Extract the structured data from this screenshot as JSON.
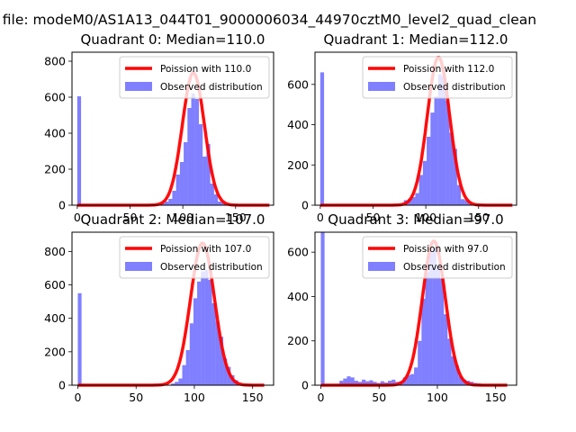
{
  "suptitle": "n file: modeM0/AS1A13_044T01_9000006034_44970cztM0_level2_quad_clean",
  "chart_data": [
    {
      "type": "bar+line",
      "title": "Quadrant 0: Median=110.0",
      "xlim": [
        -5,
        186
      ],
      "ylim": [
        0,
        850
      ],
      "xticks": [
        0,
        50,
        100,
        150
      ],
      "yticks": [
        0,
        200,
        400,
        600,
        800
      ],
      "bin_width": 3.6,
      "legend": {
        "position": "top-right",
        "line_label": "Poission with 110.0",
        "bar_label": "Observed distribution"
      },
      "series": [
        {
          "name": "Observed distribution",
          "kind": "histogram",
          "color": "#0000ff",
          "bins": [
            {
              "x": 0,
              "y": 605
            },
            {
              "x": 79.2,
              "y": 10
            },
            {
              "x": 82.8,
              "y": 20
            },
            {
              "x": 86.4,
              "y": 35
            },
            {
              "x": 90,
              "y": 80
            },
            {
              "x": 93.6,
              "y": 170
            },
            {
              "x": 97.2,
              "y": 240
            },
            {
              "x": 100.8,
              "y": 350
            },
            {
              "x": 104.4,
              "y": 540
            },
            {
              "x": 108,
              "y": 620
            },
            {
              "x": 111.6,
              "y": 590
            },
            {
              "x": 115.2,
              "y": 450
            },
            {
              "x": 118.8,
              "y": 270
            },
            {
              "x": 122.4,
              "y": 340
            },
            {
              "x": 126,
              "y": 120
            },
            {
              "x": 129.6,
              "y": 60
            },
            {
              "x": 133.2,
              "y": 20
            },
            {
              "x": 136.8,
              "y": 15
            },
            {
              "x": 140.4,
              "y": 8
            }
          ]
        },
        {
          "name": "Poission with 110.0",
          "kind": "poisson",
          "mu": 110,
          "peak": 735,
          "x_range": [
            0,
            182
          ],
          "color": "#ff0000"
        }
      ]
    },
    {
      "type": "bar+line",
      "title": "Quadrant 1: Median=112.0",
      "xlim": [
        -5,
        186
      ],
      "ylim": [
        0,
        760
      ],
      "xticks": [
        0,
        50,
        100,
        150
      ],
      "yticks": [
        0,
        200,
        400,
        600
      ],
      "bin_width": 3.6,
      "legend": {
        "position": "top-right",
        "line_label": "Poission with 112.0",
        "bar_label": "Observed distribution"
      },
      "series": [
        {
          "name": "Observed distribution",
          "kind": "histogram",
          "color": "#0000ff",
          "bins": [
            {
              "x": 0,
              "y": 660
            },
            {
              "x": 79.2,
              "y": 25
            },
            {
              "x": 82.8,
              "y": 30
            },
            {
              "x": 86.4,
              "y": 40
            },
            {
              "x": 90,
              "y": 60
            },
            {
              "x": 93.6,
              "y": 150
            },
            {
              "x": 97.2,
              "y": 220
            },
            {
              "x": 100.8,
              "y": 340
            },
            {
              "x": 104.4,
              "y": 460
            },
            {
              "x": 108,
              "y": 540
            },
            {
              "x": 111.6,
              "y": 650
            },
            {
              "x": 115.2,
              "y": 640
            },
            {
              "x": 118.8,
              "y": 520
            },
            {
              "x": 122.4,
              "y": 360
            },
            {
              "x": 126,
              "y": 280
            },
            {
              "x": 129.6,
              "y": 100
            },
            {
              "x": 133.2,
              "y": 30
            },
            {
              "x": 136.8,
              "y": 25
            },
            {
              "x": 140.4,
              "y": 12
            }
          ]
        },
        {
          "name": "Poission with 112.0",
          "kind": "poisson",
          "mu": 112,
          "peak": 735,
          "x_range": [
            0,
            182
          ],
          "color": "#ff0000"
        }
      ]
    },
    {
      "type": "bar+line",
      "title": "Quadrant 2: Median=107.0",
      "xlim": [
        -5,
        168
      ],
      "ylim": [
        0,
        915
      ],
      "xticks": [
        0,
        50,
        100,
        150
      ],
      "yticks": [
        0,
        200,
        400,
        600,
        800
      ],
      "bin_width": 3.2,
      "legend": {
        "position": "top-right",
        "line_label": "Poission with 107.0",
        "bar_label": "Observed distribution"
      },
      "series": [
        {
          "name": "Observed distribution",
          "kind": "histogram",
          "color": "#0000ff",
          "bins": [
            {
              "x": 0,
              "y": 550
            },
            {
              "x": 80,
              "y": 10
            },
            {
              "x": 83.2,
              "y": 20
            },
            {
              "x": 86.4,
              "y": 40
            },
            {
              "x": 89.6,
              "y": 120
            },
            {
              "x": 92.8,
              "y": 210
            },
            {
              "x": 96,
              "y": 370
            },
            {
              "x": 99.2,
              "y": 520
            },
            {
              "x": 102.4,
              "y": 620
            },
            {
              "x": 105.6,
              "y": 680
            },
            {
              "x": 108.8,
              "y": 690
            },
            {
              "x": 112,
              "y": 630
            },
            {
              "x": 115.2,
              "y": 490
            },
            {
              "x": 118.4,
              "y": 380
            },
            {
              "x": 121.6,
              "y": 290
            },
            {
              "x": 124.8,
              "y": 160
            },
            {
              "x": 128,
              "y": 110
            },
            {
              "x": 131.2,
              "y": 60
            },
            {
              "x": 134.4,
              "y": 30
            }
          ]
        },
        {
          "name": "Poission with 107.0",
          "kind": "poisson",
          "mu": 107,
          "peak": 850,
          "x_range": [
            0,
            160
          ],
          "color": "#ff0000"
        }
      ]
    },
    {
      "type": "bar+line",
      "title": "Quadrant 3: Median=97.0",
      "xlim": [
        -5,
        168
      ],
      "ylim": [
        0,
        690
      ],
      "xticks": [
        0,
        50,
        100,
        150
      ],
      "yticks": [
        0,
        200,
        400,
        600
      ],
      "bin_width": 3.2,
      "legend": {
        "position": "top-right",
        "line_label": "Poission with 97.0",
        "bar_label": "Observed distribution"
      },
      "series": [
        {
          "name": "Observed distribution",
          "kind": "histogram",
          "color": "#0000ff",
          "bins": [
            {
              "x": 0,
              "y": 690
            },
            {
              "x": 16,
              "y": 20
            },
            {
              "x": 19.2,
              "y": 30
            },
            {
              "x": 22.4,
              "y": 40
            },
            {
              "x": 25.6,
              "y": 35
            },
            {
              "x": 28.8,
              "y": 20
            },
            {
              "x": 32,
              "y": 15
            },
            {
              "x": 35.2,
              "y": 25
            },
            {
              "x": 38.4,
              "y": 18
            },
            {
              "x": 41.6,
              "y": 22
            },
            {
              "x": 44.8,
              "y": 15
            },
            {
              "x": 48,
              "y": 10
            },
            {
              "x": 51.2,
              "y": 18
            },
            {
              "x": 54.4,
              "y": 12
            },
            {
              "x": 57.6,
              "y": 20
            },
            {
              "x": 60.8,
              "y": 25
            },
            {
              "x": 64,
              "y": 15
            },
            {
              "x": 67.2,
              "y": 18
            },
            {
              "x": 70.4,
              "y": 35
            },
            {
              "x": 73.6,
              "y": 45
            },
            {
              "x": 76.8,
              "y": 50
            },
            {
              "x": 80,
              "y": 80
            },
            {
              "x": 83.2,
              "y": 200
            },
            {
              "x": 86.4,
              "y": 390
            },
            {
              "x": 89.6,
              "y": 510
            },
            {
              "x": 92.8,
              "y": 600
            },
            {
              "x": 96,
              "y": 620
            },
            {
              "x": 99.2,
              "y": 540
            },
            {
              "x": 102.4,
              "y": 480
            },
            {
              "x": 105.6,
              "y": 320
            },
            {
              "x": 108.8,
              "y": 210
            },
            {
              "x": 112,
              "y": 130
            },
            {
              "x": 115.2,
              "y": 90
            },
            {
              "x": 118.4,
              "y": 40
            },
            {
              "x": 121.6,
              "y": 25
            },
            {
              "x": 124.8,
              "y": 20
            },
            {
              "x": 128,
              "y": 15
            },
            {
              "x": 131.2,
              "y": 10
            },
            {
              "x": 134.4,
              "y": 8
            },
            {
              "x": 137.6,
              "y": 5
            }
          ]
        },
        {
          "name": "Poission with 97.0",
          "kind": "poisson",
          "mu": 97,
          "peak": 650,
          "x_range": [
            0,
            160
          ],
          "color": "#ff0000"
        }
      ]
    }
  ]
}
